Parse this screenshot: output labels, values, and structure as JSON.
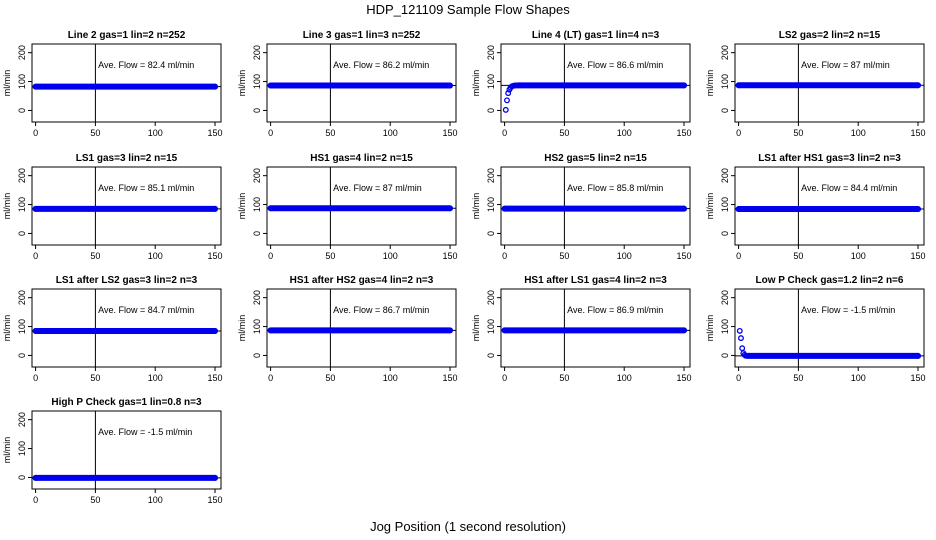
{
  "figure": {
    "title": "HDP_121109  Sample Flow Shapes",
    "xlabel": "Jog Position (1 second resolution)"
  },
  "colors": {
    "points": "#0000ee",
    "hline": "#000000",
    "vline": "#000000"
  },
  "chart_data": [
    {
      "type": "scatter",
      "title": "Line 2 gas=1 lin=2 n=252",
      "annotation": "Ave. Flow =  82.4  ml/min",
      "ylabel": "ml/min",
      "xlim": [
        -3,
        155
      ],
      "ylim": [
        -40,
        230
      ],
      "xticks": [
        0,
        50,
        100,
        150
      ],
      "yticks": [
        0,
        100,
        200
      ],
      "hline": 82.4,
      "vline": 50,
      "points": [
        [
          0,
          82.4
        ],
        [
          150,
          82.4
        ]
      ],
      "fill": {
        "x0": 0,
        "x1": 150,
        "y": 82.4
      }
    },
    {
      "type": "scatter",
      "title": "Line 3 gas=1 lin=3 n=252",
      "annotation": "Ave. Flow =  86.2  ml/min",
      "ylabel": "ml/min",
      "xlim": [
        -3,
        155
      ],
      "ylim": [
        -40,
        230
      ],
      "xticks": [
        0,
        50,
        100,
        150
      ],
      "yticks": [
        0,
        100,
        200
      ],
      "hline": 86.2,
      "vline": 50,
      "points": [
        [
          0,
          86.2
        ],
        [
          150,
          86.2
        ]
      ],
      "fill": {
        "x0": 0,
        "x1": 150,
        "y": 86.2
      }
    },
    {
      "type": "scatter",
      "title": "Line 4 (LT) gas=1 lin=4 n=3",
      "annotation": "Ave. Flow =  86.6  ml/min",
      "ylabel": "ml/min",
      "xlim": [
        -3,
        155
      ],
      "ylim": [
        -40,
        230
      ],
      "xticks": [
        0,
        50,
        100,
        150
      ],
      "yticks": [
        0,
        100,
        200
      ],
      "hline": 86.6,
      "vline": 50,
      "points": [
        [
          1,
          2
        ],
        [
          2,
          35
        ],
        [
          3,
          60
        ],
        [
          4,
          72
        ],
        [
          5,
          79
        ],
        [
          6,
          83
        ],
        [
          7,
          85
        ],
        [
          8,
          86
        ],
        [
          9,
          86.5
        ],
        [
          10,
          86.6
        ],
        [
          150,
          86.6
        ]
      ],
      "fill": {
        "x0": 11,
        "x1": 150,
        "y": 86.6
      }
    },
    {
      "type": "scatter",
      "title": "LS2 gas=2 lin=2 n=15",
      "annotation": "Ave. Flow =  87  ml/min",
      "ylabel": "ml/min",
      "xlim": [
        -3,
        155
      ],
      "ylim": [
        -40,
        230
      ],
      "xticks": [
        0,
        50,
        100,
        150
      ],
      "yticks": [
        0,
        100,
        200
      ],
      "hline": 87,
      "vline": 50,
      "points": [
        [
          0,
          87
        ],
        [
          150,
          87
        ]
      ],
      "fill": {
        "x0": 0,
        "x1": 150,
        "y": 87
      }
    },
    {
      "type": "scatter",
      "title": "LS1 gas=3 lin=2 n=15",
      "annotation": "Ave. Flow =  85.1  ml/min",
      "ylabel": "ml/min",
      "xlim": [
        -3,
        155
      ],
      "ylim": [
        -40,
        230
      ],
      "xticks": [
        0,
        50,
        100,
        150
      ],
      "yticks": [
        0,
        100,
        200
      ],
      "hline": 85.1,
      "vline": 50,
      "points": [
        [
          0,
          85.1
        ],
        [
          150,
          85.1
        ]
      ],
      "fill": {
        "x0": 0,
        "x1": 150,
        "y": 85.1
      }
    },
    {
      "type": "scatter",
      "title": "HS1 gas=4 lin=2 n=15",
      "annotation": "Ave. Flow =  87  ml/min",
      "ylabel": "ml/min",
      "xlim": [
        -3,
        155
      ],
      "ylim": [
        -40,
        230
      ],
      "xticks": [
        0,
        50,
        100,
        150
      ],
      "yticks": [
        0,
        100,
        200
      ],
      "hline": 87,
      "vline": 50,
      "points": [
        [
          0,
          87
        ],
        [
          150,
          87
        ]
      ],
      "fill": {
        "x0": 0,
        "x1": 150,
        "y": 87
      }
    },
    {
      "type": "scatter",
      "title": "HS2 gas=5 lin=2 n=15",
      "annotation": "Ave. Flow =  85.8  ml/min",
      "ylabel": "ml/min",
      "xlim": [
        -3,
        155
      ],
      "ylim": [
        -40,
        230
      ],
      "xticks": [
        0,
        50,
        100,
        150
      ],
      "yticks": [
        0,
        100,
        200
      ],
      "hline": 85.8,
      "vline": 50,
      "points": [
        [
          0,
          85.8
        ],
        [
          150,
          85.8
        ]
      ],
      "fill": {
        "x0": 0,
        "x1": 150,
        "y": 85.8
      }
    },
    {
      "type": "scatter",
      "title": "LS1 after HS1 gas=3 lin=2 n=3",
      "annotation": "Ave. Flow =  84.4  ml/min",
      "ylabel": "ml/min",
      "xlim": [
        -3,
        155
      ],
      "ylim": [
        -40,
        230
      ],
      "xticks": [
        0,
        50,
        100,
        150
      ],
      "yticks": [
        0,
        100,
        200
      ],
      "hline": 84.4,
      "vline": 50,
      "points": [
        [
          0,
          84.4
        ],
        [
          150,
          84.4
        ]
      ],
      "fill": {
        "x0": 0,
        "x1": 150,
        "y": 84.4
      }
    },
    {
      "type": "scatter",
      "title": "LS1 after LS2 gas=3 lin=2 n=3",
      "annotation": "Ave. Flow =  84.7  ml/min",
      "ylabel": "ml/min",
      "xlim": [
        -3,
        155
      ],
      "ylim": [
        -40,
        230
      ],
      "xticks": [
        0,
        50,
        100,
        150
      ],
      "yticks": [
        0,
        100,
        200
      ],
      "hline": 84.7,
      "vline": 50,
      "points": [
        [
          0,
          84.7
        ],
        [
          150,
          84.7
        ]
      ],
      "fill": {
        "x0": 0,
        "x1": 150,
        "y": 84.7
      }
    },
    {
      "type": "scatter",
      "title": "HS1 after HS2 gas=4 lin=2 n=3",
      "annotation": "Ave. Flow =  86.7  ml/min",
      "ylabel": "ml/min",
      "xlim": [
        -3,
        155
      ],
      "ylim": [
        -40,
        230
      ],
      "xticks": [
        0,
        50,
        100,
        150
      ],
      "yticks": [
        0,
        100,
        200
      ],
      "hline": 86.7,
      "vline": 50,
      "points": [
        [
          0,
          86.7
        ],
        [
          150,
          86.7
        ]
      ],
      "fill": {
        "x0": 0,
        "x1": 150,
        "y": 86.7
      }
    },
    {
      "type": "scatter",
      "title": "HS1 after LS1 gas=4 lin=2 n=3",
      "annotation": "Ave. Flow =  86.9  ml/min",
      "ylabel": "ml/min",
      "xlim": [
        -3,
        155
      ],
      "ylim": [
        -40,
        230
      ],
      "xticks": [
        0,
        50,
        100,
        150
      ],
      "yticks": [
        0,
        100,
        200
      ],
      "hline": 86.9,
      "vline": 50,
      "points": [
        [
          0,
          86.9
        ],
        [
          150,
          86.9
        ]
      ],
      "fill": {
        "x0": 0,
        "x1": 150,
        "y": 86.9
      }
    },
    {
      "type": "scatter",
      "title": "Low P Check gas=1.2 lin=2 n=6",
      "annotation": "Ave. Flow =  -1.5  ml/min",
      "ylabel": "ml/min",
      "xlim": [
        -3,
        155
      ],
      "ylim": [
        -40,
        230
      ],
      "xticks": [
        0,
        50,
        100,
        150
      ],
      "yticks": [
        0,
        100,
        200
      ],
      "hline": -1.5,
      "vline": 50,
      "points": [
        [
          1,
          85
        ],
        [
          2,
          60
        ],
        [
          3,
          25
        ],
        [
          4,
          8
        ],
        [
          5,
          2
        ],
        [
          6,
          -1
        ],
        [
          150,
          -1.5
        ]
      ],
      "fill": {
        "x0": 7,
        "x1": 150,
        "y": -1.5
      }
    },
    {
      "type": "scatter",
      "title": "High P Check gas=1 lin=0.8 n=3",
      "annotation": "Ave. Flow =  -1.5  ml/min",
      "ylabel": "ml/min",
      "xlim": [
        -3,
        155
      ],
      "ylim": [
        -40,
        230
      ],
      "xticks": [
        0,
        50,
        100,
        150
      ],
      "yticks": [
        0,
        100,
        200
      ],
      "hline": -1.5,
      "vline": 50,
      "points": [
        [
          0,
          -1.5
        ],
        [
          150,
          -1.5
        ]
      ],
      "fill": {
        "x0": 0,
        "x1": 150,
        "y": -1.5
      }
    }
  ]
}
